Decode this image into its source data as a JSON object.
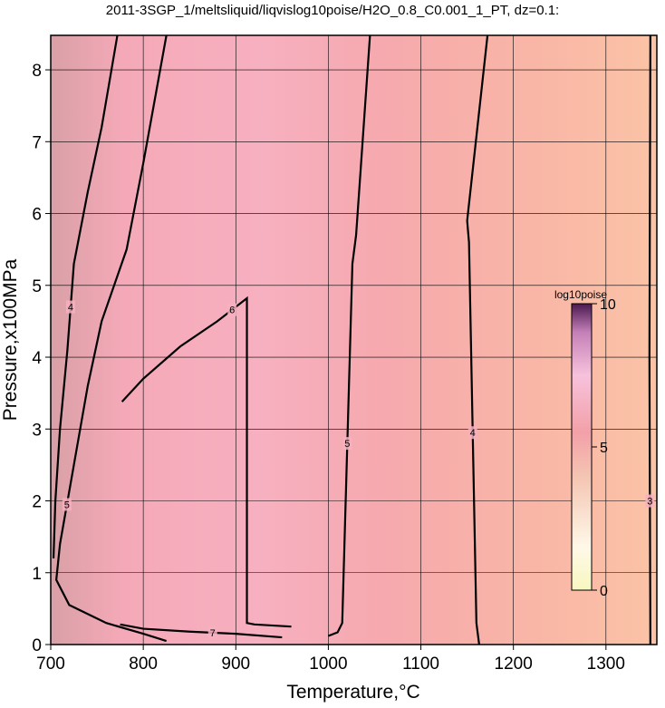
{
  "chart_data": {
    "type": "contour",
    "title": "2011-3SGP_1/meltsliquid/liqvislog10poise/H2O_0.8_C0.001_1_PT, dz=0.1:",
    "x_label": "Temperature,°C",
    "y_label": "Pressure,x100MPa",
    "xlim": [
      700,
      1355
    ],
    "ylim": [
      0,
      8.48
    ],
    "xticks": [
      700,
      800,
      900,
      1000,
      1100,
      1200,
      1300
    ],
    "yticks": [
      0,
      1,
      2,
      3,
      4,
      5,
      6,
      7,
      8
    ],
    "grid": true,
    "contour_color": "#000000",
    "contours": [
      {
        "level": 3,
        "x": [
          1348,
          1347,
          1348
        ],
        "y": [
          8.48,
          4.0,
          0
        ]
      },
      {
        "level": 4,
        "x": [
          1172,
          1150,
          1152,
          1160,
          1163
        ],
        "y": [
          8.48,
          5.9,
          5.6,
          0.3,
          0
        ]
      },
      {
        "level": 5,
        "x": [
          1045,
          1030,
          1026,
          1015,
          1010,
          1000
        ],
        "y": [
          8.48,
          5.7,
          5.3,
          0.3,
          0.17,
          0.12
        ]
      },
      {
        "level": 6,
        "x": [
          777,
          800,
          840,
          880,
          912,
          912,
          920,
          960
        ],
        "y": [
          3.38,
          3.7,
          4.15,
          4.5,
          4.82,
          0.3,
          0.28,
          0.25
        ]
      },
      {
        "level": 5,
        "x": [
          825,
          800,
          782,
          755,
          740,
          725,
          710,
          706,
          720,
          760,
          800,
          825
        ],
        "y": [
          8.48,
          6.7,
          5.5,
          4.5,
          3.6,
          2.5,
          1.4,
          0.9,
          0.55,
          0.3,
          0.15,
          0.05
        ]
      },
      {
        "level": 4,
        "x": [
          772,
          755,
          740,
          725,
          718,
          710,
          705,
          703
        ],
        "y": [
          8.48,
          7.2,
          6.3,
          5.3,
          4.1,
          3.0,
          2.0,
          1.2
        ]
      },
      {
        "level": 7,
        "x": [
          775,
          800,
          850,
          900,
          950
        ],
        "y": [
          0.28,
          0.22,
          0.18,
          0.15,
          0.1
        ]
      }
    ],
    "colorbar": {
      "label": "log10poise",
      "lim": [
        0,
        10
      ],
      "ticks": [
        0,
        5,
        10
      ]
    }
  }
}
